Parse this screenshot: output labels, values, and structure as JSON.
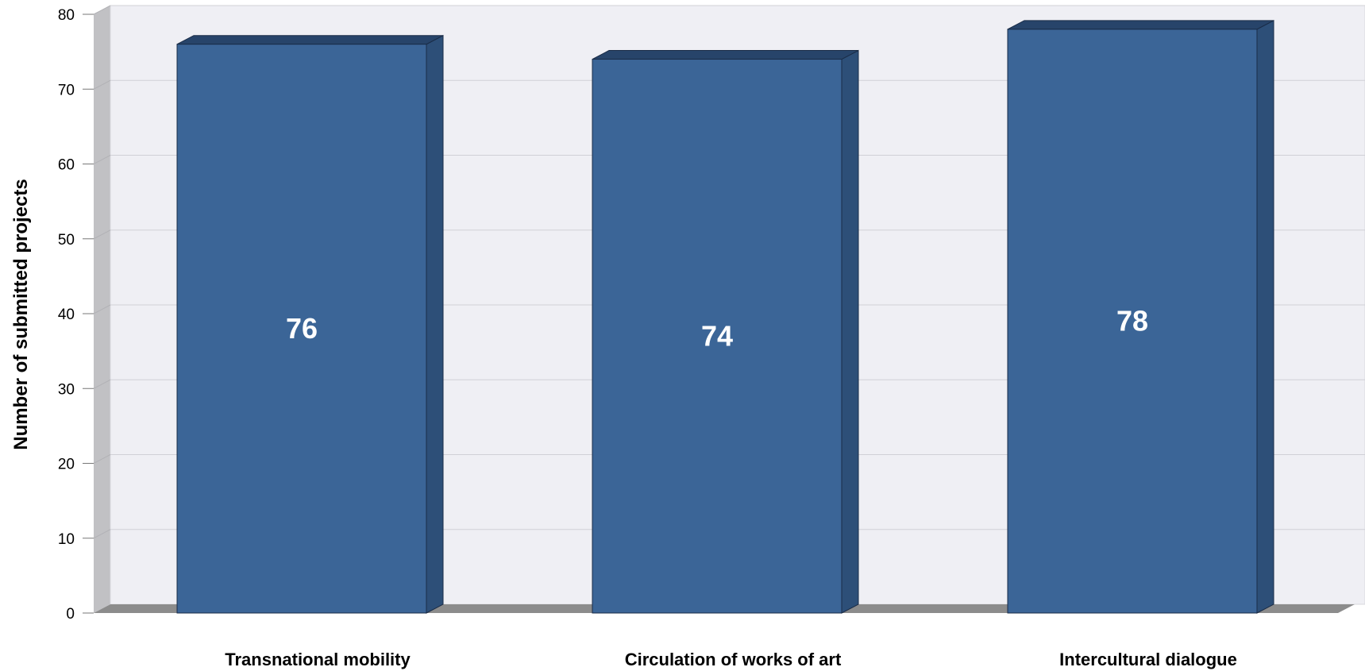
{
  "chart_data": {
    "type": "bar",
    "categories": [
      "Transnational mobility",
      "Circulation of works of art",
      "Intercultural dialogue"
    ],
    "values": [
      76,
      74,
      78
    ],
    "value_labels": [
      "76",
      "74",
      "78"
    ],
    "title": "",
    "xlabel": "",
    "ylabel": "Number of submitted projects",
    "ylim": [
      0,
      80
    ],
    "yticks": [
      "0",
      "10",
      "20",
      "30",
      "40",
      "50",
      "60",
      "70",
      "80"
    ],
    "grid": true,
    "three_d": true,
    "colors": {
      "bar_front": "#3b6597",
      "bar_side": "#2d4f78",
      "bar_top": "#27446a",
      "bar_edge": "#1a2c47",
      "back_wall": "#efeff4",
      "side_wall": "#c1c1c4",
      "floor": "#8c8c8c",
      "grid": "#d0d0d6"
    }
  }
}
